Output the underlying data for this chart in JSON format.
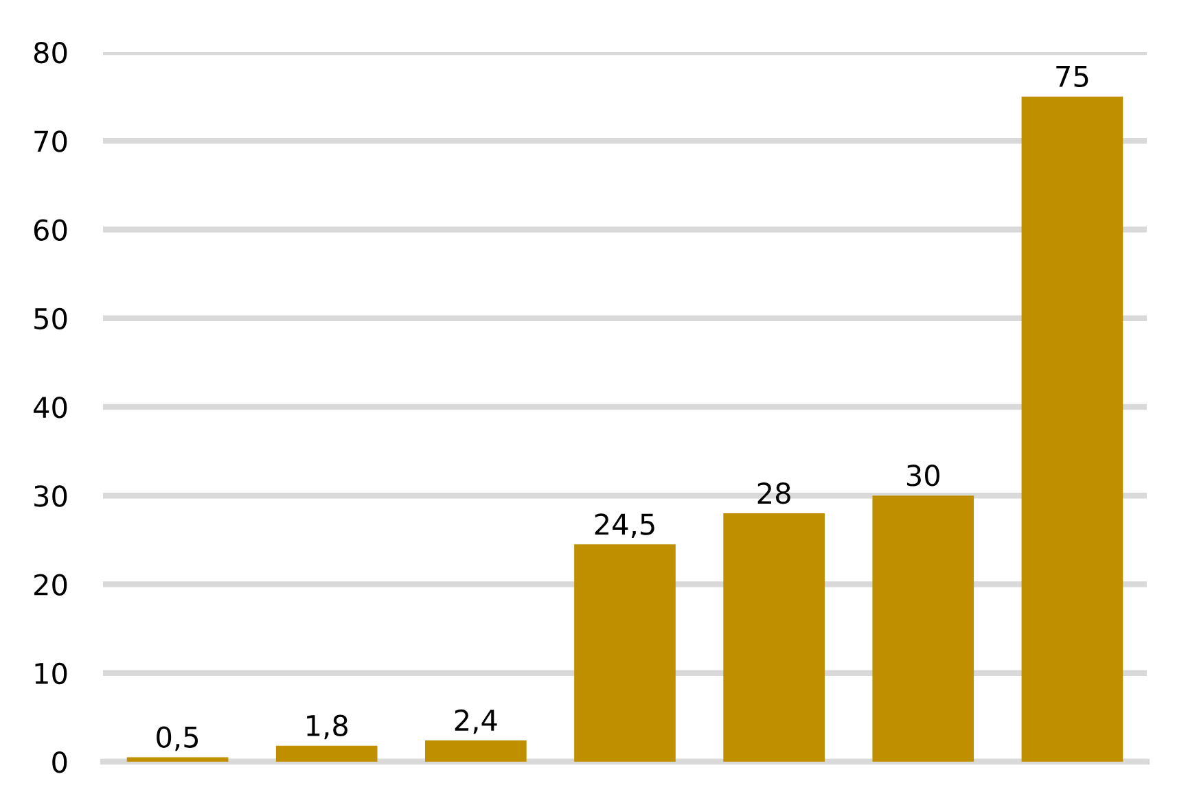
{
  "chart_data": {
    "type": "bar",
    "categories": [
      null,
      null,
      null,
      null,
      null,
      null,
      null
    ],
    "values": [
      0.5,
      1.8,
      2.4,
      24.5,
      28,
      30,
      75
    ],
    "value_labels": [
      "0,5",
      "1,8",
      "2,4",
      "24,5",
      "28",
      "30",
      "75"
    ],
    "color": "#bf8f00",
    "ylim": [
      0,
      80
    ],
    "yticks": [
      0,
      10,
      20,
      30,
      40,
      50,
      60,
      70,
      80
    ],
    "grid": "y",
    "legend": false
  }
}
